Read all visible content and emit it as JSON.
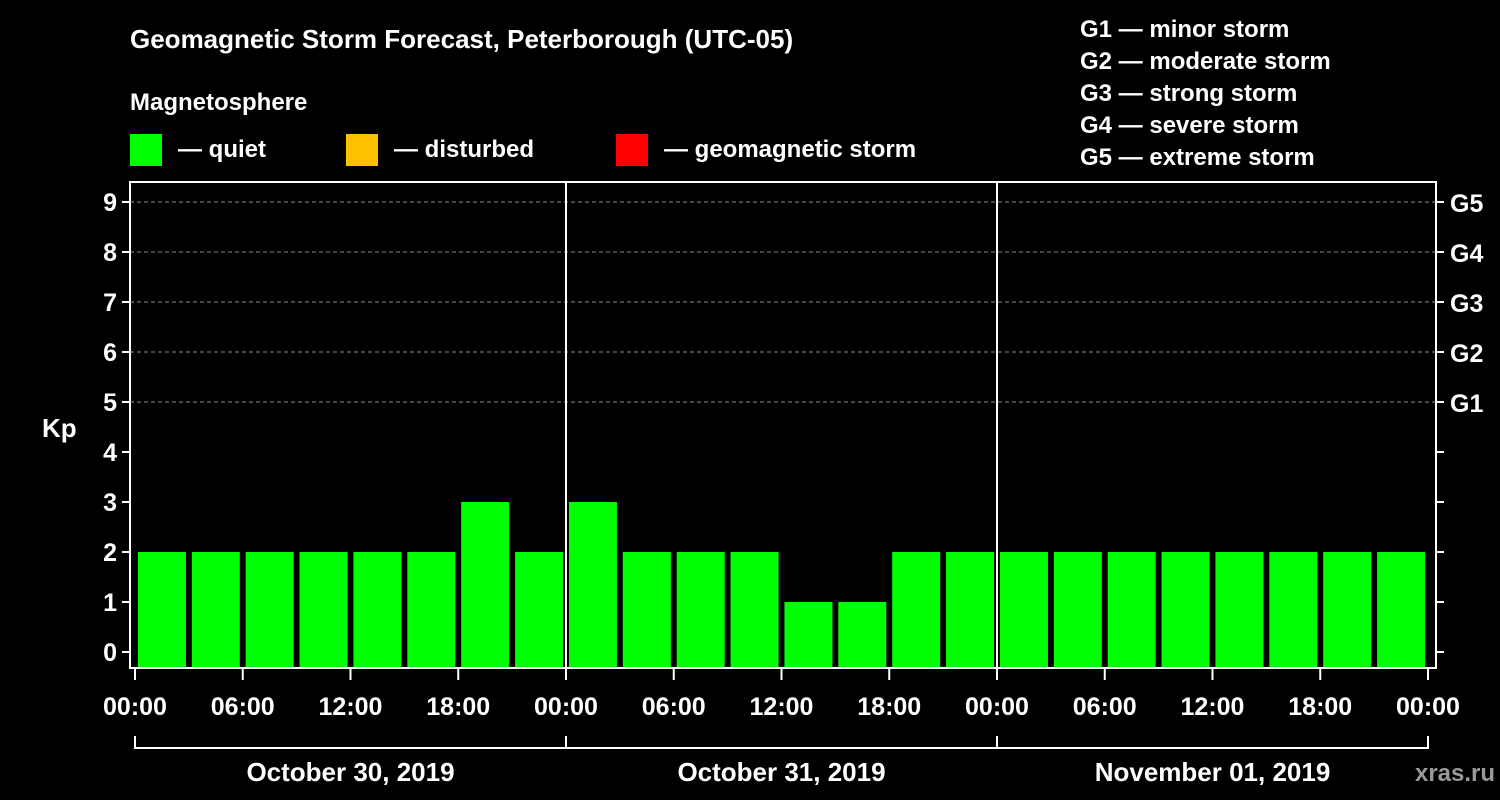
{
  "chart_data": {
    "type": "bar",
    "title": "Geomagnetic Storm Forecast, Peterborough (UTC-05)",
    "ylabel": "Kp",
    "ylim": [
      0,
      9
    ],
    "yticks": [
      "0",
      "1",
      "2",
      "3",
      "4",
      "5",
      "6",
      "7",
      "8",
      "9"
    ],
    "g_scale": [
      {
        "label": "G5",
        "kp": 9
      },
      {
        "label": "G4",
        "kp": 8
      },
      {
        "label": "G3",
        "kp": 7
      },
      {
        "label": "G2",
        "kp": 6
      },
      {
        "label": "G1",
        "kp": 5
      }
    ],
    "x_ticks": [
      "00:00",
      "06:00",
      "12:00",
      "18:00",
      "00:00",
      "06:00",
      "12:00",
      "18:00",
      "00:00",
      "06:00",
      "12:00",
      "18:00",
      "00:00"
    ],
    "days": [
      "October 30, 2019",
      "October 31, 2019",
      "November 01, 2019"
    ],
    "interval_hours": 3,
    "first_bar_hours": 1.5,
    "values": [
      2,
      2,
      2,
      2,
      2,
      2,
      3,
      2,
      3,
      2,
      2,
      2,
      1,
      1,
      2,
      2,
      2,
      2,
      2,
      2,
      2,
      2,
      2,
      2
    ],
    "bar_color": "#00ff00",
    "grid": true
  },
  "legend": {
    "heading": "Magnetosphere",
    "items": [
      {
        "label": "— quiet",
        "color": "#00ff00"
      },
      {
        "label": "— disturbed",
        "color": "#ffc000"
      },
      {
        "label": "— geomagnetic storm",
        "color": "#ff0000"
      }
    ]
  },
  "g_legend": [
    "G1 — minor storm",
    "G2 — moderate storm",
    "G3 — strong storm",
    "G4 — severe storm",
    "G5 — extreme storm"
  ],
  "watermark": "xras.ru",
  "colors": {
    "background": "#000000",
    "axis": "#ffffff",
    "grid": "#888888"
  }
}
